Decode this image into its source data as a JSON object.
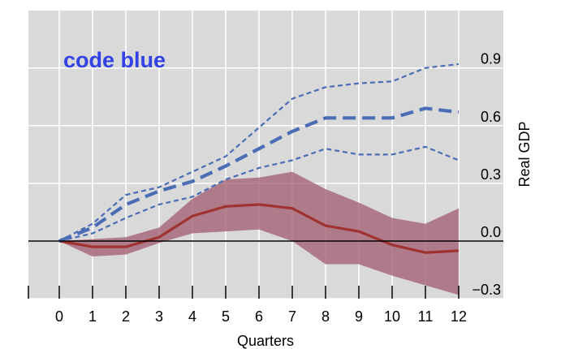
{
  "chart_data": {
    "type": "line",
    "title": "",
    "xlabel": "Quarters",
    "ylabel": "Real GDP",
    "annotation": "code blue",
    "x": [
      0,
      1,
      2,
      3,
      4,
      5,
      6,
      7,
      8,
      9,
      10,
      11,
      12
    ],
    "xlim": [
      -1,
      13
    ],
    "ylim": [
      -0.35,
      1.05
    ],
    "y_ticks": [
      -0.3,
      0.0,
      0.3,
      0.6,
      0.9
    ],
    "y_tick_labels": [
      "−0.3",
      "0.0",
      "0.3",
      "0.6",
      "0.9"
    ],
    "grid": true,
    "zero_line": 0,
    "series": [
      {
        "role": "central-red",
        "style": "solid",
        "color": "#a03232",
        "values": [
          0.0,
          -0.03,
          -0.03,
          0.02,
          0.13,
          0.18,
          0.19,
          0.17,
          0.08,
          0.05,
          -0.02,
          -0.06,
          -0.05
        ]
      },
      {
        "role": "band-red",
        "color": "#a05a6e",
        "upper": [
          0.0,
          0.01,
          0.02,
          0.07,
          0.22,
          0.32,
          0.33,
          0.36,
          0.27,
          0.2,
          0.12,
          0.09,
          0.17
        ],
        "lower": [
          0.0,
          -0.08,
          -0.07,
          -0.01,
          0.04,
          0.05,
          0.06,
          0.0,
          -0.12,
          -0.12,
          -0.18,
          -0.23,
          -0.28
        ]
      },
      {
        "role": "central-blue",
        "style": "dashed-thick",
        "color": "#4a6db5",
        "values": [
          0.0,
          0.07,
          0.19,
          0.26,
          0.31,
          0.39,
          0.48,
          0.57,
          0.64,
          0.64,
          0.64,
          0.69,
          0.67
        ]
      },
      {
        "role": "upper-blue",
        "style": "dashed-thin",
        "color": "#4a6db5",
        "values": [
          0.0,
          0.09,
          0.24,
          0.28,
          0.36,
          0.44,
          0.59,
          0.74,
          0.8,
          0.82,
          0.83,
          0.9,
          0.92
        ]
      },
      {
        "role": "lower-blue",
        "style": "dashed-thin",
        "color": "#4a6db5",
        "values": [
          0.0,
          0.04,
          0.12,
          0.19,
          0.23,
          0.32,
          0.38,
          0.42,
          0.48,
          0.45,
          0.45,
          0.49,
          0.42
        ]
      }
    ]
  },
  "colors": {
    "plot_background": "#d9d9d9",
    "grid": "#ffffff",
    "annotation": "#3342e6",
    "axis": "#000000"
  }
}
